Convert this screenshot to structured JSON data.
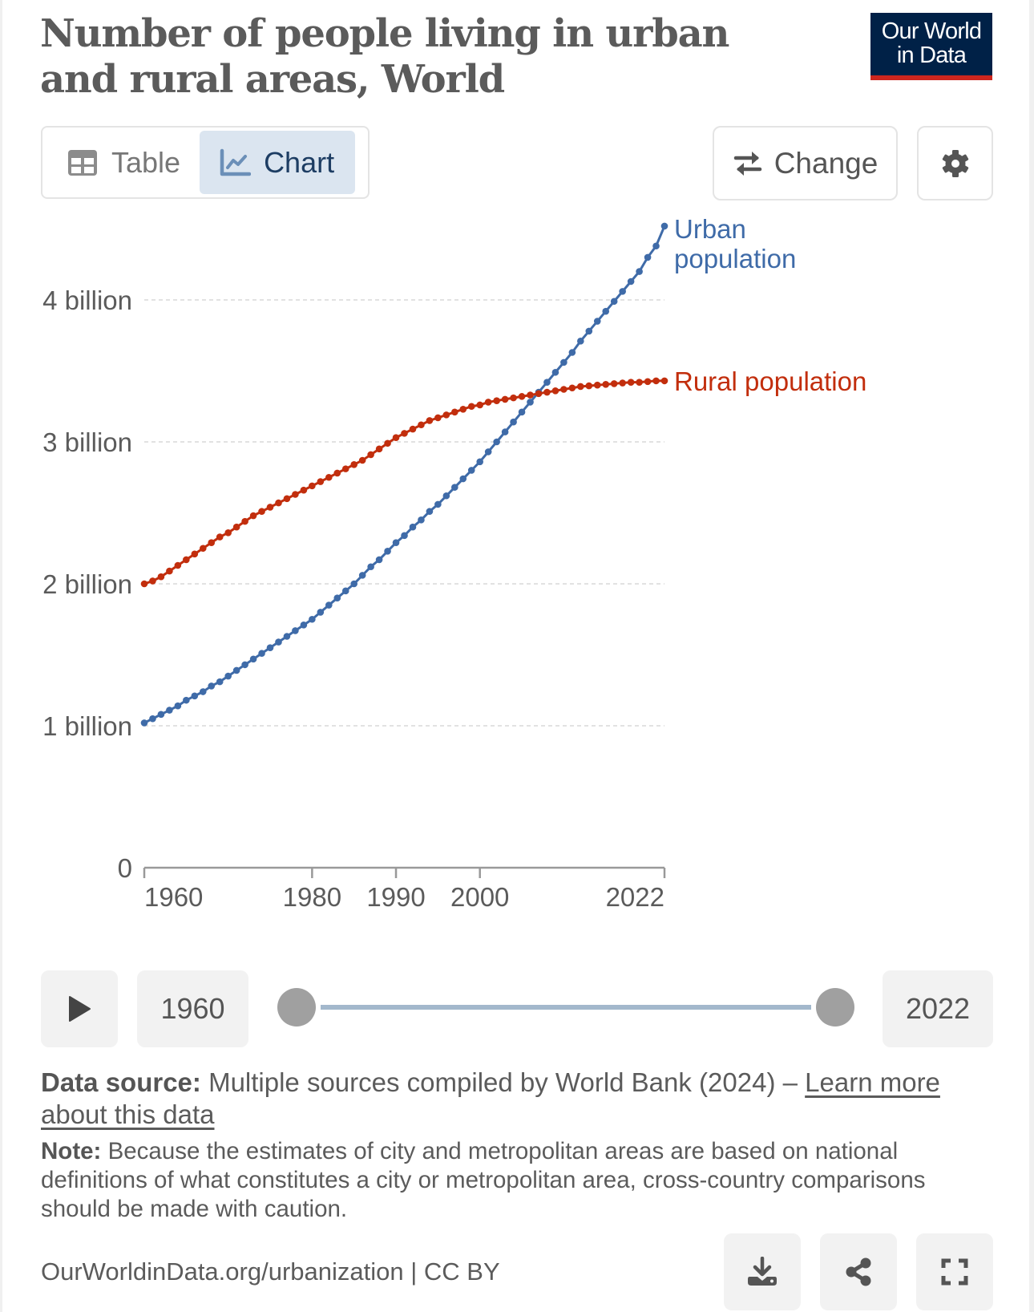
{
  "header": {
    "title": "Number of people living in urban and rural areas, World",
    "logo_line1": "Our World",
    "logo_line2": "in Data"
  },
  "tabs": [
    {
      "label": "Table",
      "icon": "table-icon",
      "active": false
    },
    {
      "label": "Chart",
      "icon": "line-chart-icon",
      "active": true
    }
  ],
  "toolbar": {
    "change_label": "Change",
    "change_icon": "swap-arrows-icon",
    "settings_icon": "gear-icon"
  },
  "timeline": {
    "play_icon": "play-icon",
    "start_year": "1960",
    "end_year": "2022",
    "range_min": 1960,
    "range_max": 2022,
    "selected_start": 1960,
    "selected_end": 2022
  },
  "source": {
    "label": "Data source:",
    "text": "Multiple sources compiled by World Bank (2024) – ",
    "link": "Learn more about this data"
  },
  "note": {
    "label": "Note:",
    "text": "Because the estimates of city and metropolitan areas are based on national definitions of what constitutes a city or metropolitan area, cross-country comparisons should be made with caution."
  },
  "footer": {
    "url": "OurWorldinData.org/urbanization | CC BY",
    "download_icon": "download-icon",
    "share_icon": "share-icon",
    "fullscreen_icon": "fullscreen-icon"
  },
  "colors": {
    "urban": "#3f6ba8",
    "rural": "#c22e0d",
    "gridline": "#d9d9d9",
    "axis": "#999999",
    "tab_active_bg": "#dbe5f0",
    "logo_bg": "#002147",
    "logo_bar": "#ce261e"
  },
  "chart_data": {
    "type": "line",
    "title": "Number of people living in urban and rural areas, World",
    "xlabel": "",
    "ylabel": "",
    "xlim": [
      1960,
      2022
    ],
    "ylim": [
      0,
      4600000000
    ],
    "x_ticks": [
      1960,
      1980,
      1990,
      2000,
      2022
    ],
    "x_tick_labels": [
      "1960",
      "1980",
      "1990",
      "2000",
      "2022"
    ],
    "y_ticks": [
      0,
      1000000000,
      2000000000,
      3000000000,
      4000000000
    ],
    "y_tick_labels": [
      "0",
      "1 billion",
      "2 billion",
      "3 billion",
      "4 billion"
    ],
    "grid": "horizontal dashed",
    "legend": "inline labels at line ends (right)",
    "markers": true,
    "x": [
      1960,
      1961,
      1962,
      1963,
      1964,
      1965,
      1966,
      1967,
      1968,
      1969,
      1970,
      1971,
      1972,
      1973,
      1974,
      1975,
      1976,
      1977,
      1978,
      1979,
      1980,
      1981,
      1982,
      1983,
      1984,
      1985,
      1986,
      1987,
      1988,
      1989,
      1990,
      1991,
      1992,
      1993,
      1994,
      1995,
      1996,
      1997,
      1998,
      1999,
      2000,
      2001,
      2002,
      2003,
      2004,
      2005,
      2006,
      2007,
      2008,
      2009,
      2010,
      2011,
      2012,
      2013,
      2014,
      2015,
      2016,
      2017,
      2018,
      2019,
      2020,
      2021,
      2022
    ],
    "series": [
      {
        "name": "Urban population",
        "label": "Urban\npopulation",
        "label_line1": "Urban",
        "label_line2": "population",
        "color": "#3f6ba8",
        "unit": "billion",
        "values": [
          1.02,
          1.05,
          1.08,
          1.11,
          1.14,
          1.18,
          1.21,
          1.24,
          1.28,
          1.31,
          1.35,
          1.39,
          1.43,
          1.47,
          1.51,
          1.55,
          1.59,
          1.63,
          1.67,
          1.71,
          1.75,
          1.8,
          1.85,
          1.9,
          1.95,
          2.0,
          2.06,
          2.12,
          2.17,
          2.23,
          2.29,
          2.34,
          2.4,
          2.45,
          2.51,
          2.56,
          2.62,
          2.68,
          2.74,
          2.8,
          2.86,
          2.93,
          3.0,
          3.07,
          3.14,
          3.21,
          3.28,
          3.35,
          3.42,
          3.49,
          3.56,
          3.63,
          3.71,
          3.78,
          3.85,
          3.92,
          3.99,
          4.06,
          4.13,
          4.2,
          4.3,
          4.38,
          4.52
        ]
      },
      {
        "name": "Rural population",
        "label": "Rural population",
        "color": "#c22e0d",
        "unit": "billion",
        "values": [
          2.0,
          2.02,
          2.05,
          2.09,
          2.13,
          2.17,
          2.21,
          2.25,
          2.29,
          2.33,
          2.36,
          2.4,
          2.44,
          2.48,
          2.51,
          2.54,
          2.57,
          2.6,
          2.63,
          2.66,
          2.69,
          2.72,
          2.75,
          2.78,
          2.81,
          2.84,
          2.87,
          2.91,
          2.95,
          2.99,
          3.03,
          3.06,
          3.09,
          3.12,
          3.15,
          3.17,
          3.19,
          3.21,
          3.23,
          3.25,
          3.26,
          3.28,
          3.29,
          3.3,
          3.31,
          3.32,
          3.33,
          3.34,
          3.35,
          3.36,
          3.37,
          3.38,
          3.39,
          3.395,
          3.4,
          3.405,
          3.41,
          3.415,
          3.42,
          3.42,
          3.425,
          3.43,
          3.43
        ]
      }
    ]
  }
}
